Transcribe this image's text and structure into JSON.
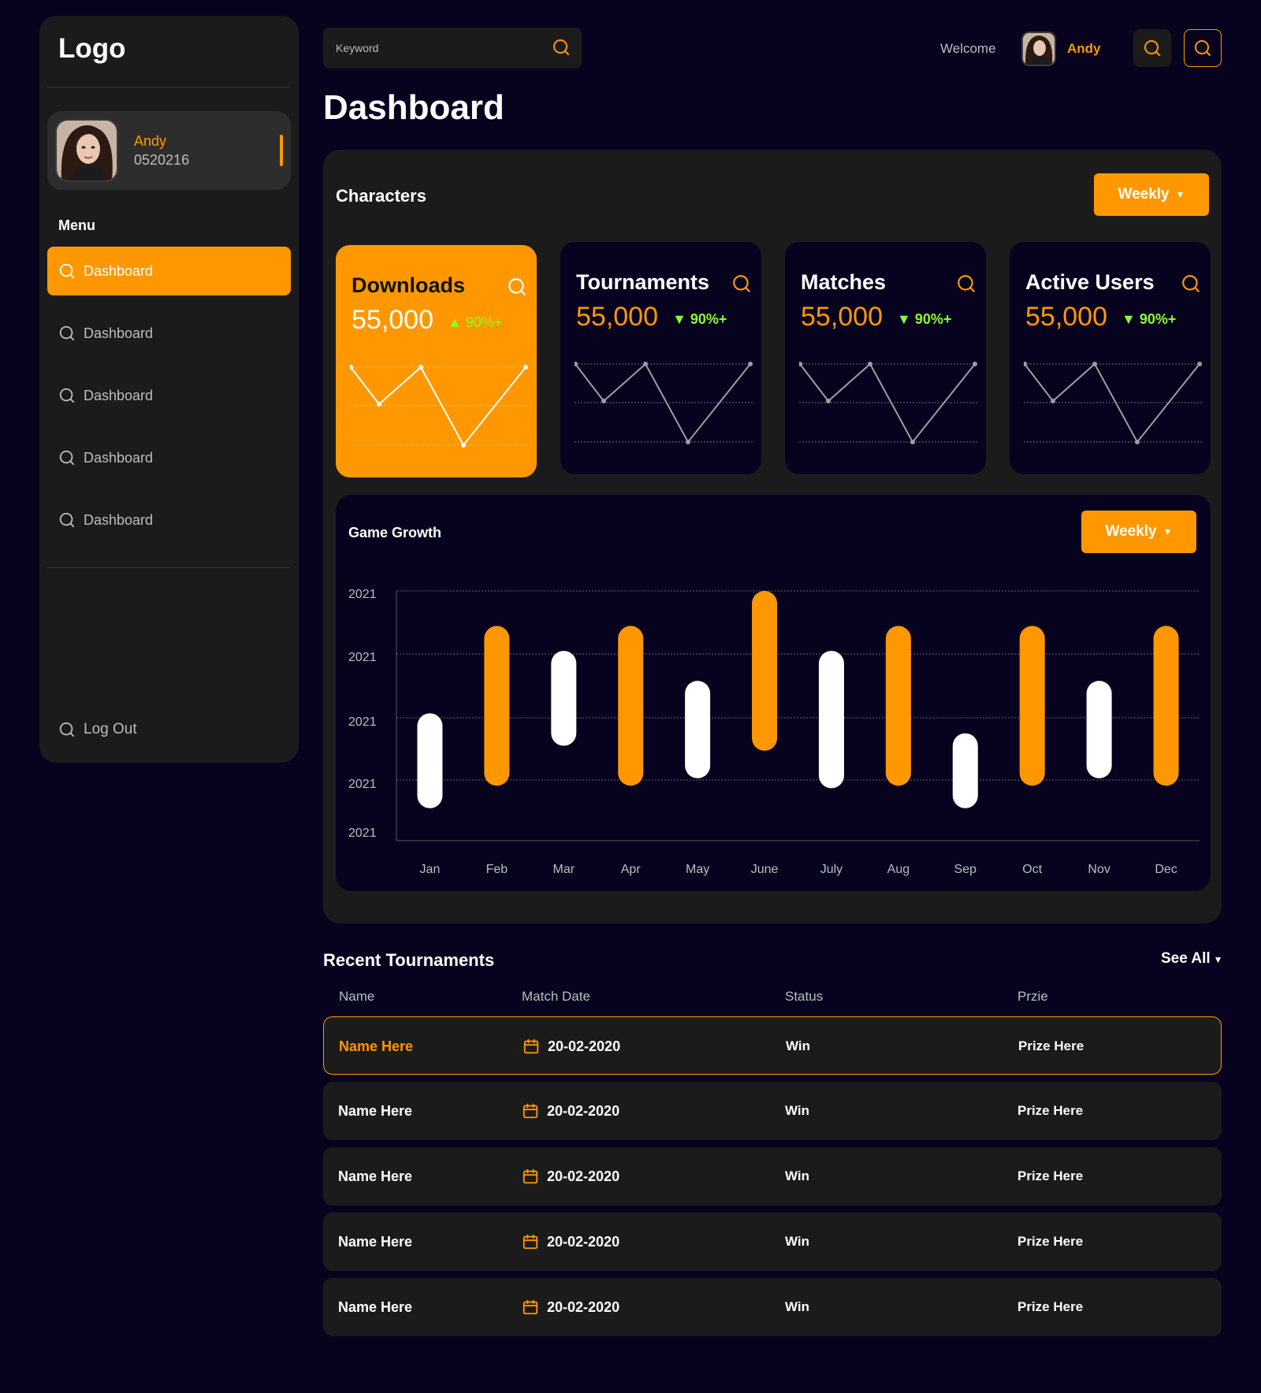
{
  "sidebar": {
    "logo": "Logo",
    "profile": {
      "name": "Andy",
      "id": "0520216"
    },
    "menu_title": "Menu",
    "items": [
      {
        "label": "Dashboard",
        "active": true
      },
      {
        "label": "Dashboard",
        "active": false
      },
      {
        "label": "Dashboard",
        "active": false
      },
      {
        "label": "Dashboard",
        "active": false
      },
      {
        "label": "Dashboard",
        "active": false
      }
    ],
    "logout_label": "Log Out"
  },
  "header": {
    "search_placeholder": "Keyword",
    "welcome": "Welcome",
    "user_name": "Andy"
  },
  "page_title": "Dashboard",
  "characters": {
    "title": "Characters",
    "filter_label": "Weekly",
    "cards": [
      {
        "title": "Downloads",
        "value": "55,000",
        "change": "90%+",
        "trend": "up",
        "highlighted": true
      },
      {
        "title": "Tournaments",
        "value": "55,000",
        "change": "90%+",
        "trend": "down",
        "highlighted": false
      },
      {
        "title": "Matches",
        "value": "55,000",
        "change": "90%+",
        "trend": "down",
        "highlighted": false
      },
      {
        "title": "Active Users",
        "value": "55,000",
        "change": "90%+",
        "trend": "down",
        "highlighted": false
      }
    ]
  },
  "game_growth": {
    "title": "Game Growth",
    "filter_label": "Weekly"
  },
  "chart_data": {
    "type": "bar",
    "ylabel_ticks": [
      "2021",
      "2021",
      "2021",
      "2021",
      "2021"
    ],
    "categories": [
      "Jan",
      "Feb",
      "Mar",
      "Apr",
      "May",
      "June",
      "July",
      "Aug",
      "Sep",
      "Oct",
      "Nov",
      "Dec"
    ],
    "ranges": [
      {
        "low": 0.13,
        "high": 0.51
      },
      {
        "low": 0.22,
        "high": 0.86
      },
      {
        "low": 0.38,
        "high": 0.76
      },
      {
        "low": 0.22,
        "high": 0.86
      },
      {
        "low": 0.25,
        "high": 0.64
      },
      {
        "low": 0.36,
        "high": 1.0
      },
      {
        "low": 0.21,
        "high": 0.76
      },
      {
        "low": 0.22,
        "high": 0.86
      },
      {
        "low": 0.13,
        "high": 0.43
      },
      {
        "low": 0.22,
        "high": 0.86
      },
      {
        "low": 0.25,
        "high": 0.64
      },
      {
        "low": 0.22,
        "high": 0.86
      }
    ],
    "bar_colors": [
      "#ffffff",
      "#ff9800",
      "#ffffff",
      "#ff9800",
      "#ffffff",
      "#ff9800",
      "#ffffff",
      "#ff9800",
      "#ffffff",
      "#ff9800",
      "#ffffff",
      "#ff9800"
    ],
    "grid": true
  },
  "recent_tournaments": {
    "title": "Recent Tournaments",
    "see_all": "See All",
    "columns": [
      "Name",
      "Match Date",
      "Status",
      "Przie"
    ],
    "rows": [
      {
        "name": "Name Here",
        "date": "20-02-2020",
        "status": "Win",
        "prize": "Prize Here",
        "highlighted": true
      },
      {
        "name": "Name Here",
        "date": "20-02-2020",
        "status": "Win",
        "prize": "Prize Here",
        "highlighted": false
      },
      {
        "name": "Name Here",
        "date": "20-02-2020",
        "status": "Win",
        "prize": "Prize Here",
        "highlighted": false
      },
      {
        "name": "Name Here",
        "date": "20-02-2020",
        "status": "Win",
        "prize": "Prize Here",
        "highlighted": false
      },
      {
        "name": "Name Here",
        "date": "20-02-2020",
        "status": "Win",
        "prize": "Prize Here",
        "highlighted": false
      }
    ]
  },
  "colors": {
    "accent": "#ff9800",
    "background": "#07031f",
    "panel": "#1c1b1c",
    "positive": "#8bff2b"
  },
  "icons": [
    "search-icon",
    "calendar-icon",
    "user-avatar"
  ]
}
